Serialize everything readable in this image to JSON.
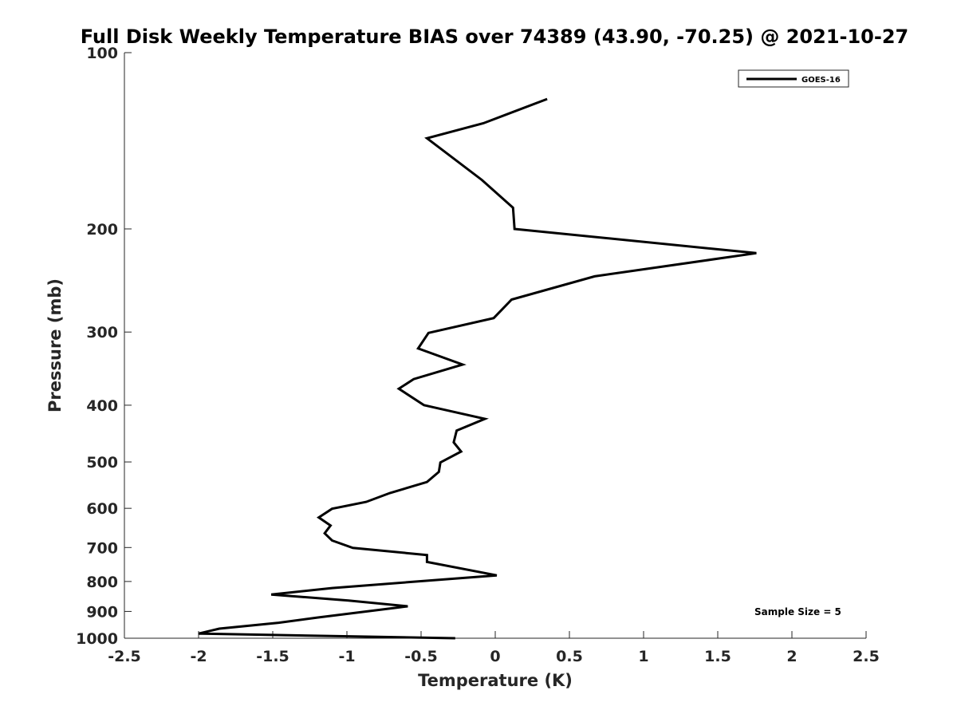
{
  "chart_data": {
    "type": "line",
    "title": "Full Disk Weekly Temperature BIAS over 74389 (43.90, -70.25) @ 2021-10-27",
    "xlabel": "Temperature (K)",
    "ylabel": "Pressure (mb)",
    "xlim": [
      -2.5,
      2.5
    ],
    "ylim": [
      100,
      1000
    ],
    "yscale": "log",
    "y_reversed": true,
    "xticks": [
      "-2.5",
      "-2",
      "-1.5",
      "-1",
      "-0.5",
      "0",
      "0.5",
      "1",
      "1.5",
      "2",
      "2.5"
    ],
    "yticks": [
      "100",
      "200",
      "300",
      "400",
      "500",
      "600",
      "700",
      "800",
      "900",
      "1000"
    ],
    "grid": false,
    "legend": {
      "position": "top-right",
      "entries": [
        "GOES-16"
      ]
    },
    "annotation": "Sample Size = 5",
    "series": [
      {
        "name": "GOES-16",
        "color": "#000000",
        "points": [
          [
            0.35,
            120
          ],
          [
            -0.08,
            132
          ],
          [
            -0.46,
            140
          ],
          [
            -0.09,
            165
          ],
          [
            0.12,
            184
          ],
          [
            0.13,
            200
          ],
          [
            1.76,
            220
          ],
          [
            0.67,
            241
          ],
          [
            0.11,
            264
          ],
          [
            -0.01,
            284
          ],
          [
            -0.45,
            301
          ],
          [
            -0.52,
            320
          ],
          [
            -0.22,
            341
          ],
          [
            -0.55,
            361
          ],
          [
            -0.65,
            375
          ],
          [
            -0.48,
            400
          ],
          [
            -0.07,
            422
          ],
          [
            -0.26,
            442
          ],
          [
            -0.28,
            463
          ],
          [
            -0.23,
            480
          ],
          [
            -0.37,
            501
          ],
          [
            -0.38,
            520
          ],
          [
            -0.46,
            541
          ],
          [
            -0.71,
            565
          ],
          [
            -0.87,
            585
          ],
          [
            -1.1,
            601
          ],
          [
            -1.19,
            622
          ],
          [
            -1.11,
            642
          ],
          [
            -1.15,
            662
          ],
          [
            -1.1,
            681
          ],
          [
            -0.96,
            701
          ],
          [
            -0.46,
            721
          ],
          [
            -0.46,
            741
          ],
          [
            0.01,
            781
          ],
          [
            -1.1,
            821
          ],
          [
            -1.51,
            842
          ],
          [
            -0.99,
            862
          ],
          [
            -0.59,
            882
          ],
          [
            -1.2,
            922
          ],
          [
            -1.46,
            941
          ],
          [
            -1.86,
            963
          ],
          [
            -2.0,
            982
          ],
          [
            -0.27,
            1000
          ]
        ]
      }
    ]
  }
}
